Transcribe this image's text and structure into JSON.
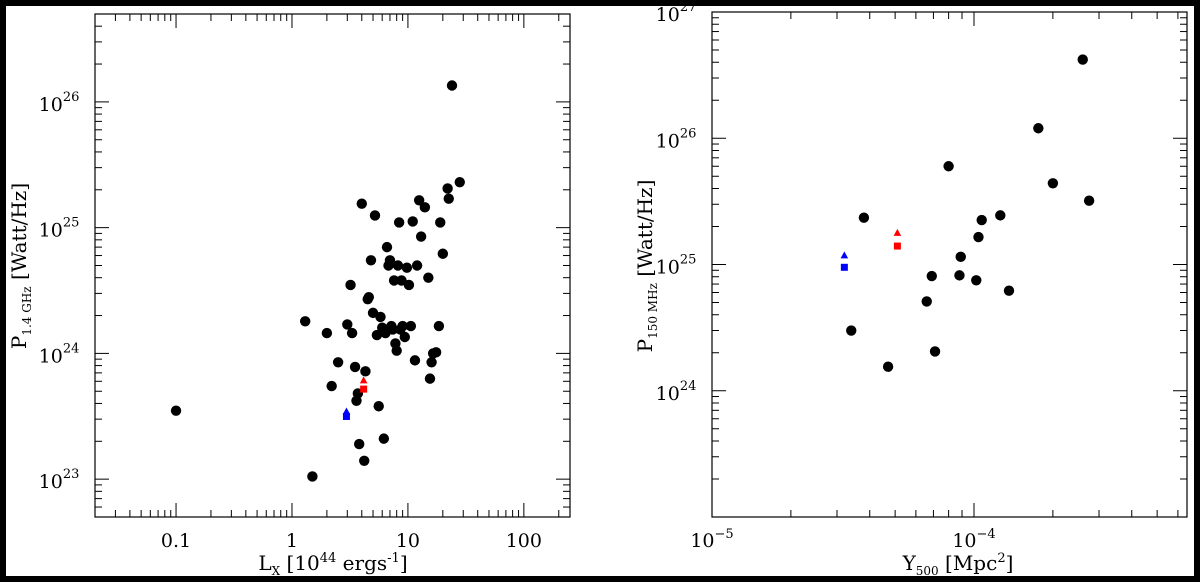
{
  "colors": {
    "black": "#000000",
    "blue": "#0000ff",
    "red": "#ff0000"
  },
  "chart_data": [
    {
      "type": "scatter",
      "xscale": "log",
      "yscale": "log",
      "xlim": [
        0.02,
        250
      ],
      "ylim": [
        5e+22,
        5e+26
      ],
      "xticklabels": [
        {
          "value": 0.1,
          "text": "0.1"
        },
        {
          "value": 1,
          "text": "1"
        },
        {
          "value": 10,
          "text": "10"
        },
        {
          "value": 100,
          "text": "100"
        }
      ],
      "yticklabels": [
        {
          "value": 1e+23,
          "base": "10",
          "exp": "23"
        },
        {
          "value": 1e+24,
          "base": "10",
          "exp": "24"
        },
        {
          "value": 1e+25,
          "base": "10",
          "exp": "25"
        },
        {
          "value": 1e+26,
          "base": "10",
          "exp": "26"
        }
      ],
      "xlabel": {
        "main": "L",
        "sub": "X",
        "rest": " [10",
        "sup": "44",
        "tail": " ergs",
        "sup2": "-1",
        "end": "]"
      },
      "ylabel": {
        "main": "P",
        "sub": "1.4 GHz",
        "rest": " [Watt/Hz]"
      },
      "series": [
        {
          "marker": "circle",
          "color": "#000000",
          "x": [
            0.1,
            1.3,
            1.5,
            2.0,
            2.2,
            2.5,
            3.0,
            3.2,
            3.3,
            3.5,
            3.6,
            3.7,
            3.8,
            4.0,
            4.2,
            4.3,
            4.5,
            4.6,
            4.8,
            5.0,
            5.2,
            5.4,
            5.6,
            5.8,
            6.0,
            6.2,
            6.4,
            6.6,
            6.8,
            7.0,
            7.2,
            7.4,
            7.6,
            7.8,
            8.0,
            8.2,
            8.4,
            8.6,
            8.8,
            9.0,
            9.4,
            9.8,
            10.2,
            10.6,
            11.0,
            11.5,
            12.0,
            12.5,
            13.0,
            14.0,
            15.0,
            15.5,
            16.0,
            16.5,
            17.5,
            18.5,
            19.0,
            20.0,
            22.0,
            22.5,
            24.0,
            28.0
          ],
          "y": [
            3.5e+23,
            1.8e+24,
            1.05e+23,
            1.45e+24,
            5.5e+23,
            8.5e+23,
            1.7e+24,
            3.5e+24,
            1.45e+24,
            7.8e+23,
            4.2e+23,
            4.8e+23,
            1.9e+23,
            1.55e+25,
            1.4e+23,
            7.2e+23,
            2.7e+24,
            2.8e+24,
            5.5e+24,
            2.1e+24,
            1.25e+25,
            1.4e+24,
            3.8e+23,
            1.95e+24,
            1.6e+24,
            2.1e+23,
            1.45e+24,
            7e+24,
            5e+24,
            5.5e+24,
            1.65e+24,
            1.55e+24,
            3.8e+24,
            1.2e+24,
            1.05e+24,
            5e+24,
            1.1e+25,
            1.55e+24,
            3.8e+24,
            1.65e+24,
            1.35e+24,
            4.8e+24,
            3.5e+24,
            1.65e+24,
            1.12e+25,
            8.8e+23,
            5e+24,
            1.65e+25,
            8.5e+24,
            1.45e+25,
            4e+24,
            6.3e+23,
            8.5e+23,
            1e+24,
            1.02e+24,
            1.65e+24,
            1.1e+25,
            6.2e+24,
            2.05e+25,
            1.7e+25,
            1.35e+26,
            2.3e+25
          ]
        },
        {
          "marker": "square",
          "color": "#0000ff",
          "x": [
            2.95
          ],
          "y": [
            3.15e+23
          ]
        },
        {
          "marker": "triangle",
          "color": "#0000ff",
          "x": [
            2.95
          ],
          "y": [
            3.45e+23
          ]
        },
        {
          "marker": "square",
          "color": "#ff0000",
          "x": [
            4.15
          ],
          "y": [
            5.2e+23
          ]
        },
        {
          "marker": "triangle",
          "color": "#ff0000",
          "x": [
            4.15
          ],
          "y": [
            6.1e+23
          ]
        }
      ]
    },
    {
      "type": "scatter",
      "xscale": "log",
      "yscale": "log",
      "xlim": [
        1e-05,
        0.00065
      ],
      "ylim": [
        1e+23,
        1e+27
      ],
      "xticklabels": [
        {
          "value": 1e-05,
          "base": "10",
          "exp": "−5"
        },
        {
          "value": 0.0001,
          "base": "10",
          "exp": "−4"
        }
      ],
      "yticklabels": [
        {
          "value": 1e+24,
          "base": "10",
          "exp": "24"
        },
        {
          "value": 1e+25,
          "base": "10",
          "exp": "25"
        },
        {
          "value": 1e+26,
          "base": "10",
          "exp": "26"
        },
        {
          "value": 1e+27,
          "base": "10",
          "exp": "27"
        }
      ],
      "xlabel": {
        "main": "Y",
        "sub": "500",
        "rest": " [Mpc",
        "sup": "2",
        "end": "]"
      },
      "ylabel": {
        "main": "P",
        "sub": "150 MHz",
        "rest": " [Watt/Hz]"
      },
      "series": [
        {
          "marker": "circle",
          "color": "#000000",
          "x": [
            3.4e-05,
            3.8e-05,
            4.7e-05,
            6.6e-05,
            6.9e-05,
            7.1e-05,
            8e-05,
            8.8e-05,
            8.9e-05,
            0.000102,
            0.000104,
            0.000107,
            0.000126,
            0.000136,
            0.000176,
            0.0002,
            0.00026,
            0.000275
          ],
          "y": [
            3e+24,
            2.35e+25,
            1.55e+24,
            5.1e+24,
            8.1e+24,
            2.05e+24,
            6e+25,
            8.2e+24,
            1.15e+25,
            7.5e+24,
            1.65e+25,
            2.25e+25,
            2.45e+25,
            6.2e+24,
            1.2e+26,
            4.4e+25,
            4.2e+26,
            3.2e+25
          ]
        },
        {
          "marker": "square",
          "color": "#0000ff",
          "x": [
            3.2e-05
          ],
          "y": [
            9.5e+24
          ]
        },
        {
          "marker": "triangle",
          "color": "#0000ff",
          "x": [
            3.2e-05
          ],
          "y": [
            1.18e+25
          ]
        },
        {
          "marker": "square",
          "color": "#ff0000",
          "x": [
            5.1e-05
          ],
          "y": [
            1.4e+25
          ]
        },
        {
          "marker": "triangle",
          "color": "#ff0000",
          "x": [
            5.1e-05
          ],
          "y": [
            1.78e+25
          ]
        }
      ]
    }
  ]
}
